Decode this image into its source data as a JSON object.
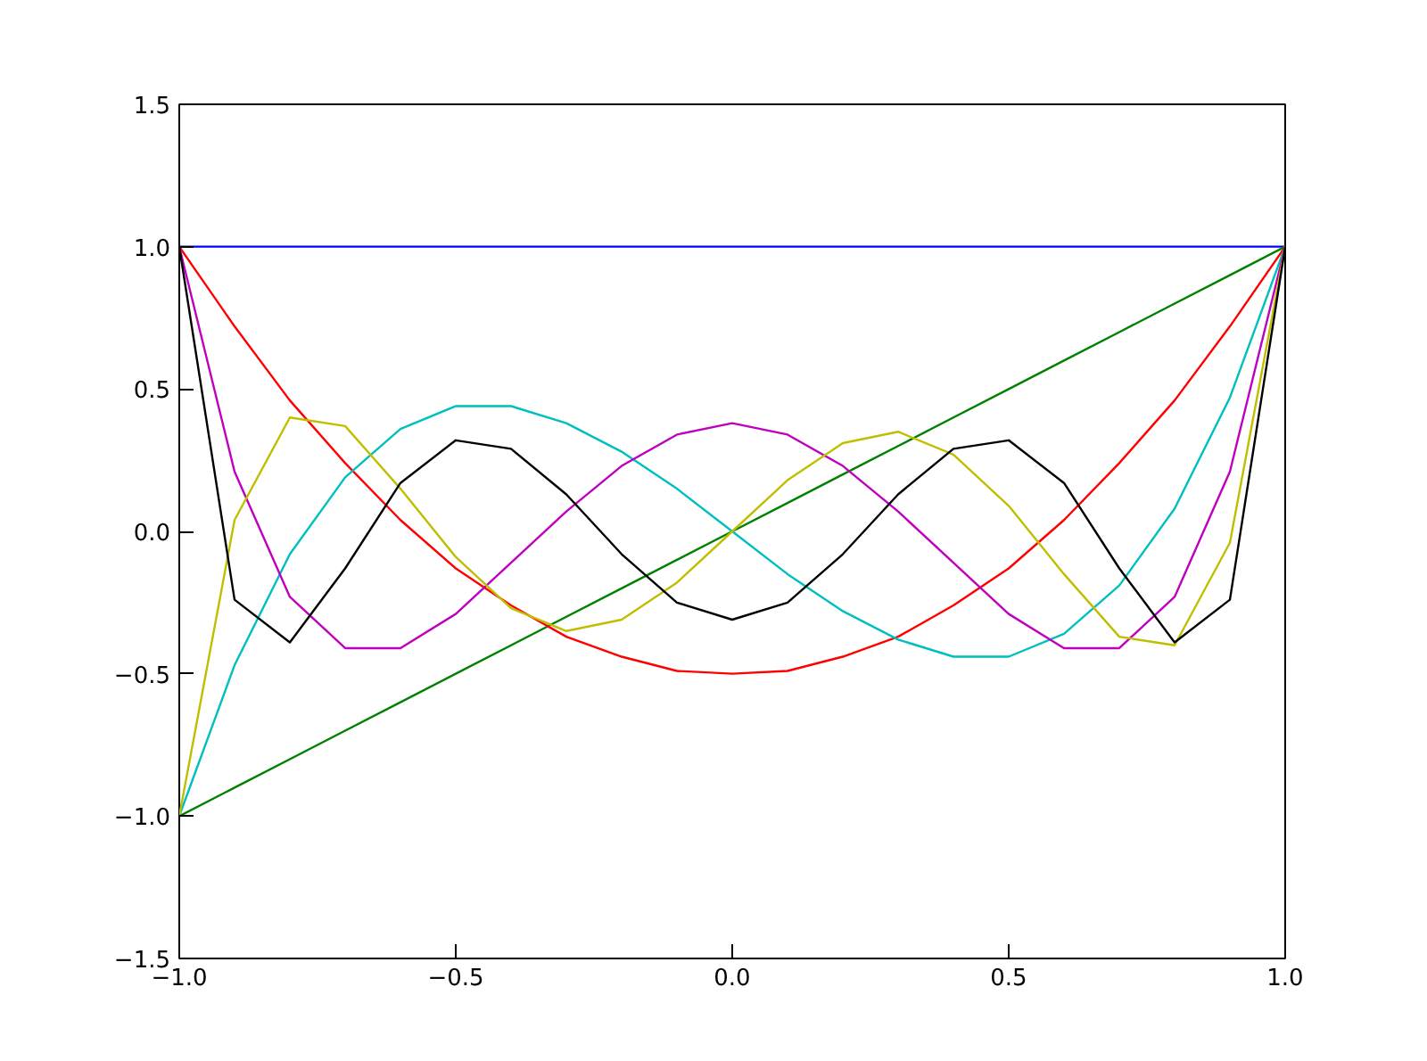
{
  "chart_data": {
    "type": "line",
    "xlim": [
      -1.0,
      1.0
    ],
    "ylim": [
      -1.5,
      1.5
    ],
    "xticks": [
      {
        "value": -1.0,
        "label": "−1.0"
      },
      {
        "value": -0.5,
        "label": "−0.5"
      },
      {
        "value": 0.0,
        "label": "0.0"
      },
      {
        "value": 0.5,
        "label": "0.5"
      },
      {
        "value": 1.0,
        "label": "1.0"
      }
    ],
    "yticks": [
      {
        "value": -1.5,
        "label": "−1.5"
      },
      {
        "value": -1.0,
        "label": "−1.0"
      },
      {
        "value": -0.5,
        "label": "−0.5"
      },
      {
        "value": 0.0,
        "label": "0.0"
      },
      {
        "value": 0.5,
        "label": "0.5"
      },
      {
        "value": 1.0,
        "label": "1.0"
      },
      {
        "value": 1.5,
        "label": "1.5"
      }
    ],
    "marker": "none",
    "line_style": "solid",
    "x": [
      -1.0,
      -0.9,
      -0.8,
      -0.7,
      -0.6,
      -0.5,
      -0.4,
      -0.3,
      -0.2,
      -0.1,
      0.0,
      0.1,
      0.2,
      0.3,
      0.4,
      0.5,
      0.6,
      0.7,
      0.8,
      0.9,
      1.0
    ],
    "series": [
      {
        "color": "#0000ff",
        "values": [
          1,
          1,
          1,
          1,
          1,
          1,
          1,
          1,
          1,
          1,
          1,
          1,
          1,
          1,
          1,
          1,
          1,
          1,
          1,
          1,
          1
        ]
      },
      {
        "color": "#008000",
        "values": [
          -1.0,
          -0.9,
          -0.8,
          -0.7,
          -0.6,
          -0.5,
          -0.4,
          -0.3,
          -0.2,
          -0.1,
          0.0,
          0.1,
          0.2,
          0.3,
          0.4,
          0.5,
          0.6,
          0.7,
          0.8,
          0.9,
          1.0
        ]
      },
      {
        "color": "#ff0000",
        "values": [
          1,
          0.72,
          0.46,
          0.24,
          0.04,
          -0.13,
          -0.26,
          -0.37,
          -0.44,
          -0.49,
          -0.5,
          -0.49,
          -0.44,
          -0.37,
          -0.26,
          -0.13,
          0.04,
          0.24,
          0.46,
          0.72,
          1
        ]
      },
      {
        "color": "#00bfbf",
        "values": [
          -1,
          -0.47,
          -0.08,
          0.19,
          0.36,
          0.44,
          0.44,
          0.38,
          0.28,
          0.15,
          0,
          -0.15,
          -0.28,
          -0.38,
          -0.44,
          -0.44,
          -0.36,
          -0.19,
          0.08,
          0.47,
          1
        ]
      },
      {
        "color": "#bf00bf",
        "values": [
          1,
          0.21,
          -0.23,
          -0.41,
          -0.41,
          -0.29,
          -0.11,
          0.07,
          0.23,
          0.34,
          0.38,
          0.34,
          0.23,
          0.07,
          -0.11,
          -0.29,
          -0.41,
          -0.41,
          -0.23,
          0.21,
          1
        ]
      },
      {
        "color": "#bfbf00",
        "values": [
          -1,
          0.04,
          0.4,
          0.37,
          0.15,
          -0.09,
          -0.27,
          -0.35,
          -0.31,
          -0.18,
          0,
          0.18,
          0.31,
          0.35,
          0.27,
          0.09,
          -0.15,
          -0.37,
          -0.4,
          -0.04,
          1
        ]
      },
      {
        "color": "#000000",
        "values": [
          1,
          -0.24,
          -0.39,
          -0.13,
          0.17,
          0.32,
          0.29,
          0.13,
          -0.08,
          -0.25,
          -0.31,
          -0.25,
          -0.08,
          0.13,
          0.29,
          0.32,
          0.17,
          -0.13,
          -0.39,
          -0.24,
          1
        ]
      }
    ]
  }
}
